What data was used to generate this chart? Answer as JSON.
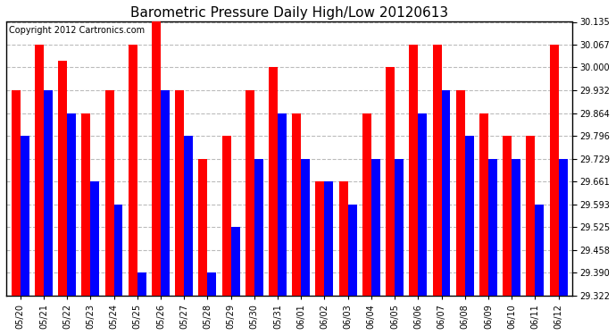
{
  "title": "Barometric Pressure Daily High/Low 20120613",
  "copyright": "Copyright 2012 Cartronics.com",
  "dates": [
    "05/20",
    "05/21",
    "05/22",
    "05/23",
    "05/24",
    "05/25",
    "05/26",
    "05/27",
    "05/28",
    "05/29",
    "05/30",
    "05/31",
    "06/01",
    "06/02",
    "06/03",
    "06/04",
    "06/05",
    "06/06",
    "06/07",
    "06/08",
    "06/09",
    "06/10",
    "06/11",
    "06/12"
  ],
  "highs": [
    29.932,
    30.067,
    30.02,
    29.864,
    29.932,
    30.067,
    30.135,
    29.932,
    29.729,
    29.796,
    29.932,
    30.0,
    29.864,
    29.661,
    29.661,
    29.864,
    30.0,
    30.067,
    30.067,
    29.932,
    29.864,
    29.796,
    29.796,
    30.067
  ],
  "lows": [
    29.796,
    29.932,
    29.864,
    29.661,
    29.593,
    29.39,
    29.932,
    29.796,
    29.39,
    29.525,
    29.729,
    29.864,
    29.729,
    29.661,
    29.593,
    29.729,
    29.729,
    29.864,
    29.932,
    29.796,
    29.729,
    29.729,
    29.593,
    29.729
  ],
  "high_color": "#ff0000",
  "low_color": "#0000ff",
  "bg_color": "#ffffff",
  "grid_color": "#bbbbbb",
  "yticks": [
    29.322,
    29.39,
    29.458,
    29.525,
    29.593,
    29.661,
    29.729,
    29.796,
    29.864,
    29.932,
    30.0,
    30.067,
    30.135
  ],
  "ymin": 29.322,
  "ymax": 30.135,
  "title_fontsize": 11,
  "copyright_fontsize": 7,
  "bar_width": 0.38
}
